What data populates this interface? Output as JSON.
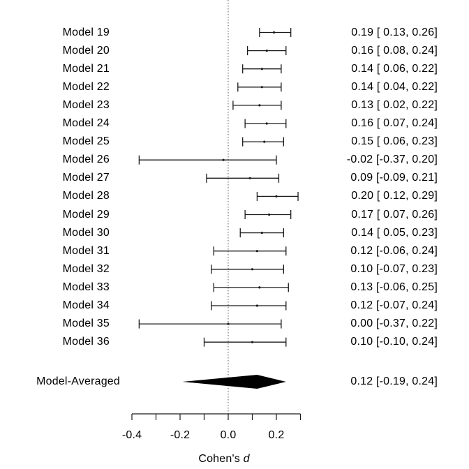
{
  "figure": {
    "background": "#ffffff",
    "line_color": "#1a1a1a",
    "text_color": "#000000",
    "diamond_color": "#000000",
    "reference_line_color": "#555555"
  },
  "chart_data": {
    "type": "forest",
    "title": "",
    "xlabel_prefix": "Cohen's ",
    "xlabel_symbol": "d",
    "xlabel": "Cohen's d",
    "axis_range": [
      -0.4,
      0.3
    ],
    "tick_step": 0.1,
    "reference_line": 0.0,
    "tick_labels": [
      {
        "value": -0.4,
        "label": "-0.4"
      },
      {
        "value": -0.2,
        "label": "-0.2"
      },
      {
        "value": 0.0,
        "label": "0.0"
      },
      {
        "value": 0.2,
        "label": "0.2"
      }
    ],
    "rows": [
      {
        "label": "Model 19",
        "est": 0.19,
        "lo": 0.13,
        "hi": 0.26,
        "display": "0.19 [ 0.13, 0.26]"
      },
      {
        "label": "Model 20",
        "est": 0.16,
        "lo": 0.08,
        "hi": 0.24,
        "display": "0.16 [ 0.08, 0.24]"
      },
      {
        "label": "Model 21",
        "est": 0.14,
        "lo": 0.06,
        "hi": 0.22,
        "display": "0.14 [ 0.06, 0.22]"
      },
      {
        "label": "Model 22",
        "est": 0.14,
        "lo": 0.04,
        "hi": 0.22,
        "display": "0.14 [ 0.04, 0.22]"
      },
      {
        "label": "Model 23",
        "est": 0.13,
        "lo": 0.02,
        "hi": 0.22,
        "display": "0.13 [ 0.02, 0.22]"
      },
      {
        "label": "Model 24",
        "est": 0.16,
        "lo": 0.07,
        "hi": 0.24,
        "display": "0.16 [ 0.07, 0.24]"
      },
      {
        "label": "Model 25",
        "est": 0.15,
        "lo": 0.06,
        "hi": 0.23,
        "display": "0.15 [ 0.06, 0.23]"
      },
      {
        "label": "Model 26",
        "est": -0.02,
        "lo": -0.37,
        "hi": 0.2,
        "display": "-0.02 [-0.37, 0.20]"
      },
      {
        "label": "Model 27",
        "est": 0.09,
        "lo": -0.09,
        "hi": 0.21,
        "display": "0.09 [-0.09, 0.21]"
      },
      {
        "label": "Model 28",
        "est": 0.2,
        "lo": 0.12,
        "hi": 0.29,
        "display": "0.20 [ 0.12, 0.29]"
      },
      {
        "label": "Model 29",
        "est": 0.17,
        "lo": 0.07,
        "hi": 0.26,
        "display": "0.17 [ 0.07, 0.26]"
      },
      {
        "label": "Model 30",
        "est": 0.14,
        "lo": 0.05,
        "hi": 0.23,
        "display": "0.14 [ 0.05, 0.23]"
      },
      {
        "label": "Model 31",
        "est": 0.12,
        "lo": -0.06,
        "hi": 0.24,
        "display": "0.12 [-0.06, 0.24]"
      },
      {
        "label": "Model 32",
        "est": 0.1,
        "lo": -0.07,
        "hi": 0.23,
        "display": "0.10 [-0.07, 0.23]"
      },
      {
        "label": "Model 33",
        "est": 0.13,
        "lo": -0.06,
        "hi": 0.25,
        "display": "0.13 [-0.06, 0.25]"
      },
      {
        "label": "Model 34",
        "est": 0.12,
        "lo": -0.07,
        "hi": 0.24,
        "display": "0.12 [-0.07, 0.24]"
      },
      {
        "label": "Model 35",
        "est": 0.0,
        "lo": -0.37,
        "hi": 0.22,
        "display": "0.00 [-0.37, 0.22]"
      },
      {
        "label": "Model 36",
        "est": 0.1,
        "lo": -0.1,
        "hi": 0.24,
        "display": "0.10 [-0.10, 0.24]"
      }
    ],
    "summary": {
      "label": "Model-Averaged",
      "est": 0.12,
      "lo": -0.19,
      "hi": 0.24,
      "display": "0.12 [-0.19, 0.24]"
    }
  }
}
